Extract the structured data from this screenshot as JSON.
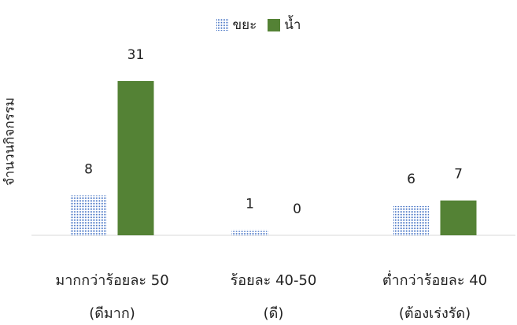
{
  "chart_data": {
    "type": "bar",
    "ylabel": "จำนวนกิจกรรม",
    "xlabel": "",
    "title": "",
    "legend_position": "top",
    "grid": false,
    "ylim": [
      0,
      31
    ],
    "categories": [
      {
        "line1": "มากกว่าร้อยละ 50",
        "line2": "(ดีมาก)"
      },
      {
        "line1": "ร้อยละ 40-50",
        "line2": "(ดี)"
      },
      {
        "line1": "ต่ำกว่าร้อยละ 40",
        "line2": "(ต้องเร่งรัด)"
      }
    ],
    "series": [
      {
        "name": "ขยะ",
        "values": [
          8,
          1,
          6
        ],
        "color": "#4472c4",
        "pattern": "dotted"
      },
      {
        "name": "น้ำ",
        "values": [
          31,
          0,
          7
        ],
        "color": "#548235",
        "pattern": "solid"
      }
    ]
  }
}
